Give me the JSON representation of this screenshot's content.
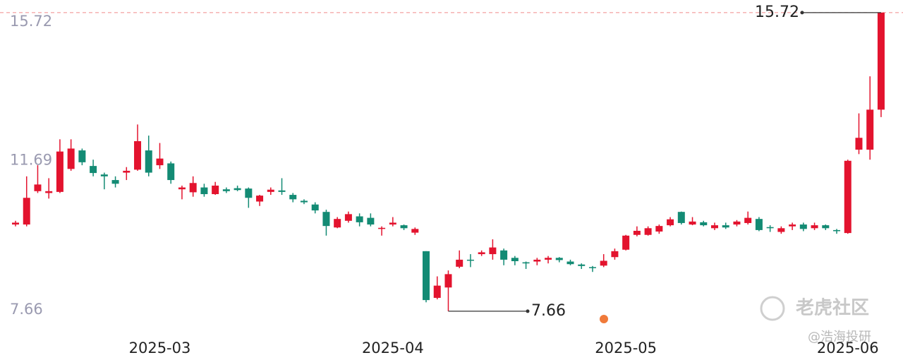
{
  "chart_data": {
    "type": "candlestick",
    "categories": [
      null,
      null,
      null,
      null,
      null,
      null,
      null,
      null,
      null,
      null,
      null,
      null,
      null,
      "2025-03",
      null,
      null,
      null,
      null,
      null,
      null,
      null,
      null,
      null,
      null,
      null,
      null,
      null,
      null,
      null,
      null,
      null,
      null,
      null,
      null,
      "2025-04",
      null,
      null,
      null,
      null,
      null,
      null,
      null,
      null,
      null,
      null,
      null,
      null,
      null,
      null,
      null,
      null,
      null,
      null,
      null,
      null,
      "2025-05",
      null,
      null,
      null,
      null,
      null,
      null,
      null,
      null,
      null,
      null,
      null,
      null,
      null,
      null,
      null,
      null,
      null,
      null,
      null,
      "2025-06",
      null,
      null,
      null
    ],
    "open": [
      10.0,
      10.0,
      10.9,
      10.85,
      10.88,
      11.5,
      12.0,
      11.58,
      11.35,
      11.2,
      11.4,
      11.48,
      12.0,
      11.6,
      11.65,
      10.95,
      10.87,
      11.0,
      10.82,
      10.95,
      10.98,
      10.97,
      10.62,
      10.88,
      10.92,
      10.8,
      10.64,
      10.54,
      10.34,
      9.92,
      10.1,
      10.22,
      10.18,
      9.88,
      10.0,
      9.98,
      9.78,
      9.28,
      8.02,
      8.3,
      8.86,
      9.05,
      9.2,
      9.2,
      9.3,
      9.1,
      8.98,
      9.0,
      9.05,
      9.1,
      9.0,
      8.92,
      8.85,
      8.89,
      9.12,
      9.32,
      9.72,
      9.72,
      9.81,
      9.98,
      10.34,
      10.0,
      10.06,
      9.9,
      9.98,
      10.0,
      10.04,
      10.15,
      9.93,
      9.8,
      9.95,
      10.0,
      9.9,
      9.98,
      9.85,
      9.77,
      12.02,
      12.02,
      13.1
    ],
    "close": [
      10.05,
      10.72,
      11.08,
      10.9,
      11.97,
      12.05,
      11.68,
      11.39,
      11.3,
      11.1,
      11.45,
      12.25,
      11.4,
      11.78,
      11.2,
      11.0,
      11.12,
      10.82,
      11.05,
      10.9,
      10.93,
      10.72,
      10.78,
      10.94,
      10.88,
      10.68,
      10.6,
      10.38,
      9.96,
      10.15,
      10.28,
      10.06,
      10.0,
      9.91,
      10.05,
      9.9,
      9.88,
      7.96,
      8.35,
      8.66,
      9.05,
      9.03,
      9.25,
      9.38,
      9.05,
      9.01,
      8.95,
      9.05,
      9.1,
      9.04,
      8.93,
      8.88,
      8.83,
      9.02,
      9.28,
      9.7,
      9.83,
      9.9,
      9.96,
      10.14,
      10.04,
      10.08,
      9.98,
      9.98,
      9.92,
      10.08,
      10.18,
      9.85,
      9.9,
      9.9,
      10.0,
      9.88,
      9.98,
      9.9,
      9.82,
      11.72,
      12.34,
      13.1,
      15.72
    ],
    "high": [
      10.1,
      11.3,
      11.6,
      11.25,
      12.3,
      12.3,
      12.05,
      11.75,
      11.4,
      11.3,
      11.55,
      12.7,
      12.4,
      12.2,
      11.7,
      11.05,
      11.3,
      11.1,
      11.15,
      11.0,
      11.05,
      11.0,
      10.8,
      11.0,
      11.25,
      10.85,
      10.68,
      10.6,
      10.4,
      10.2,
      10.35,
      10.3,
      10.3,
      9.95,
      10.2,
      10.0,
      9.92,
      9.28,
      8.6,
      8.76,
      9.3,
      9.2,
      9.3,
      9.6,
      9.35,
      9.15,
      9.0,
      9.1,
      9.15,
      9.12,
      9.05,
      8.95,
      8.88,
      9.2,
      9.35,
      9.72,
      9.95,
      9.95,
      10.0,
      10.2,
      10.35,
      10.2,
      10.1,
      10.05,
      10.05,
      10.12,
      10.35,
      10.2,
      9.98,
      9.95,
      10.05,
      10.05,
      10.05,
      10.0,
      9.88,
      11.75,
      13.0,
      14.0,
      15.72
    ],
    "low": [
      9.95,
      9.95,
      10.85,
      10.7,
      10.85,
      11.45,
      11.6,
      11.3,
      10.95,
      11.0,
      11.2,
      11.45,
      11.3,
      11.5,
      11.1,
      10.68,
      10.75,
      10.75,
      10.8,
      10.85,
      10.9,
      10.45,
      10.5,
      10.8,
      10.8,
      10.6,
      10.55,
      10.3,
      9.7,
      9.9,
      10.05,
      9.95,
      9.95,
      9.7,
      9.95,
      9.85,
      9.72,
      7.9,
      7.98,
      7.66,
      8.82,
      8.85,
      9.15,
      9.05,
      8.9,
      8.9,
      8.8,
      8.9,
      8.95,
      8.98,
      8.9,
      8.8,
      8.72,
      8.85,
      9.05,
      9.3,
      9.68,
      9.7,
      9.75,
      9.95,
      10.0,
      9.98,
      9.95,
      9.85,
      9.88,
      9.95,
      10.0,
      9.82,
      9.8,
      9.75,
      9.85,
      9.82,
      9.85,
      9.85,
      9.75,
      9.75,
      11.9,
      11.75,
      12.9
    ],
    "up_color": "#e3132e",
    "down_color": "#138b74",
    "ylim": [
      7.2,
      16.06
    ],
    "yticks": [
      15.72,
      11.69,
      7.66
    ],
    "watermarks": [
      "老虎社区",
      "@浩海投研"
    ]
  }
}
